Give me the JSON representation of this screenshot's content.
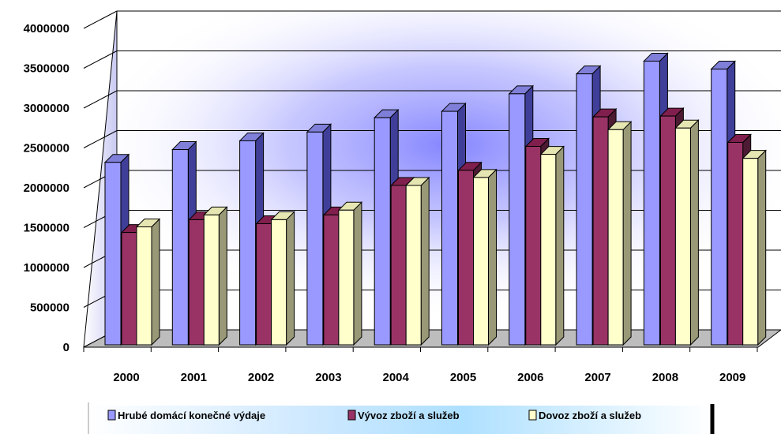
{
  "chart_data": {
    "type": "bar",
    "style": "3d-clustered-column",
    "title": "",
    "xlabel": "",
    "ylabel": "",
    "categories": [
      "2000",
      "2001",
      "2002",
      "2003",
      "2004",
      "2005",
      "2006",
      "2007",
      "2008",
      "2009"
    ],
    "ylim": [
      0,
      4000000
    ],
    "yticks": [
      0,
      500000,
      1000000,
      1500000,
      2000000,
      2500000,
      3000000,
      3500000,
      4000000
    ],
    "grid": true,
    "legend_position": "bottom",
    "series": [
      {
        "name": "Hrubé domácí konečné výdaje",
        "color": "#9999ff",
        "values": [
          2290000,
          2450000,
          2560000,
          2670000,
          2850000,
          2930000,
          3150000,
          3400000,
          3560000,
          3460000
        ]
      },
      {
        "name": "Vývoz zboží a služeb",
        "color": "#993366",
        "values": [
          1410000,
          1570000,
          1520000,
          1630000,
          2000000,
          2190000,
          2490000,
          2860000,
          2870000,
          2540000
        ]
      },
      {
        "name": "Dovoz zboží a služeb",
        "color": "#ffffcc",
        "values": [
          1480000,
          1630000,
          1570000,
          1690000,
          2000000,
          2100000,
          2390000,
          2700000,
          2720000,
          2340000
        ]
      }
    ]
  }
}
